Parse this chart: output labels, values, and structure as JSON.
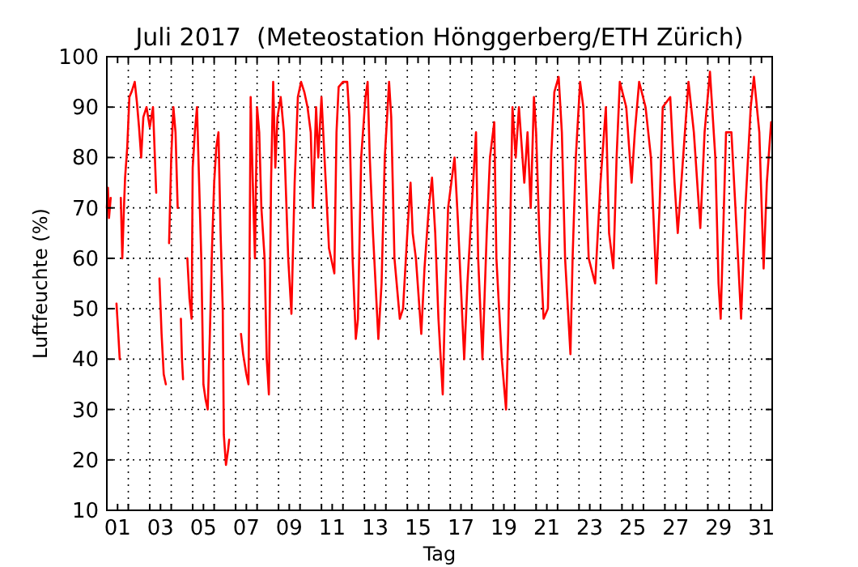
{
  "chart_data": {
    "type": "line",
    "title": "Juli 2017  (Meteostation Hönggerberg/ETH Zürich)",
    "xlabel": "Tag",
    "ylabel": "Luftfeuchte (%)",
    "xlim": [
      1,
      32
    ],
    "ylim": [
      10,
      100
    ],
    "yticks": [
      10,
      20,
      30,
      40,
      50,
      60,
      70,
      80,
      90,
      100
    ],
    "xticks": [
      {
        "value": 1.5,
        "label": "01"
      },
      {
        "value": 3.5,
        "label": "03"
      },
      {
        "value": 5.5,
        "label": "05"
      },
      {
        "value": 7.5,
        "label": "07"
      },
      {
        "value": 9.5,
        "label": "09"
      },
      {
        "value": 11.5,
        "label": "11"
      },
      {
        "value": 13.5,
        "label": "13"
      },
      {
        "value": 15.5,
        "label": "15"
      },
      {
        "value": 17.5,
        "label": "17"
      },
      {
        "value": 19.5,
        "label": "19"
      },
      {
        "value": 21.5,
        "label": "21"
      },
      {
        "value": 23.5,
        "label": "23"
      },
      {
        "value": 25.5,
        "label": "25"
      },
      {
        "value": 27.5,
        "label": "27"
      },
      {
        "value": 29.5,
        "label": "29"
      },
      {
        "value": 31.5,
        "label": "31"
      },
      {
        "value": 2,
        "label": null
      },
      {
        "value": 3,
        "label": null
      },
      {
        "value": 4,
        "label": null
      },
      {
        "value": 5,
        "label": null
      },
      {
        "value": 6,
        "label": null
      },
      {
        "value": 7,
        "label": null
      },
      {
        "value": 8,
        "label": null
      },
      {
        "value": 9,
        "label": null
      },
      {
        "value": 10,
        "label": null
      },
      {
        "value": 11,
        "label": null
      },
      {
        "value": 12,
        "label": null
      },
      {
        "value": 13,
        "label": null
      },
      {
        "value": 14,
        "label": null
      },
      {
        "value": 15,
        "label": null
      },
      {
        "value": 16,
        "label": null
      },
      {
        "value": 17,
        "label": null
      },
      {
        "value": 18,
        "label": null
      },
      {
        "value": 19,
        "label": null
      },
      {
        "value": 20,
        "label": null
      },
      {
        "value": 21,
        "label": null
      },
      {
        "value": 22,
        "label": null
      },
      {
        "value": 23,
        "label": null
      },
      {
        "value": 24,
        "label": null
      },
      {
        "value": 25,
        "label": null
      },
      {
        "value": 26,
        "label": null
      },
      {
        "value": 27,
        "label": null
      },
      {
        "value": 28,
        "label": null
      },
      {
        "value": 29,
        "label": null
      },
      {
        "value": 30,
        "label": null
      },
      {
        "value": 31,
        "label": null
      }
    ],
    "grid": true,
    "marker": "none",
    "line_style": "solid",
    "series": [
      {
        "color": "#ff0000",
        "x": [
          1.0,
          1.05,
          1.1,
          1.18,
          null,
          1.45,
          1.52,
          1.6,
          null,
          1.65,
          1.72,
          1.78,
          1.85,
          1.95,
          2.05,
          2.15,
          2.3,
          2.4,
          2.5,
          2.6,
          2.7,
          2.85,
          3.0,
          3.15,
          3.3,
          null,
          3.45,
          3.55,
          3.65,
          3.75,
          null,
          3.9,
          4.0,
          4.1,
          4.2,
          4.3,
          null,
          4.45,
          4.5,
          4.55,
          null,
          4.75,
          4.85,
          4.95,
          5.0,
          5.1,
          5.2,
          5.3,
          5.4,
          5.5,
          5.6,
          5.7,
          5.8,
          5.9,
          6.0,
          6.1,
          6.2,
          6.3,
          6.4,
          6.45,
          6.55,
          6.65,
          6.7,
          null,
          7.25,
          7.35,
          7.5,
          7.6,
          7.65,
          7.7,
          7.8,
          7.9,
          8.0,
          8.1,
          8.2,
          8.35,
          8.45,
          8.55,
          8.65,
          8.75,
          8.85,
          8.95,
          9.1,
          9.25,
          9.45,
          9.6,
          9.75,
          9.9,
          10.05,
          10.2,
          10.35,
          10.5,
          10.6,
          10.75,
          10.85,
          11.0,
          11.2,
          11.35,
          11.6,
          11.7,
          11.8,
          12.0,
          12.2,
          12.3,
          12.45,
          12.6,
          12.7,
          12.85,
          13.05,
          13.15,
          13.25,
          13.4,
          13.65,
          13.8,
          13.95,
          14.15,
          14.25,
          14.4,
          14.65,
          14.8,
          15.0,
          15.15,
          15.25,
          15.4,
          15.65,
          15.8,
          16.0,
          16.15,
          16.3,
          16.45,
          16.65,
          16.75,
          16.9,
          17.2,
          17.35,
          17.65,
          17.8,
          18.0,
          18.2,
          18.3,
          18.5,
          18.7,
          18.85,
          19.05,
          19.15,
          19.4,
          19.6,
          19.7,
          19.9,
          20.05,
          20.2,
          20.45,
          20.6,
          20.75,
          20.9,
          21.0,
          21.15,
          21.35,
          21.55,
          21.7,
          21.85,
          22.05,
          22.2,
          22.35,
          22.6,
          22.7,
          22.85,
          23.05,
          23.2,
          23.45,
          23.75,
          24.0,
          24.25,
          24.4,
          24.6,
          24.75,
          24.9,
          25.2,
          25.45,
          25.6,
          25.8,
          26.1,
          26.35,
          26.6,
          26.75,
          26.9,
          27.25,
          27.45,
          27.6,
          27.85,
          28.1,
          28.35,
          28.65,
          28.85,
          29.1,
          29.35,
          29.5,
          29.6,
          29.85,
          30.1,
          30.35,
          30.55,
          30.75,
          31.0,
          31.15,
          31.4,
          31.6,
          31.75,
          31.95
        ],
        "values": [
          70,
          74,
          68,
          72,
          null,
          51,
          46,
          40,
          null,
          72,
          60,
          68,
          76,
          82,
          92,
          93,
          95,
          91,
          86,
          80,
          88,
          90,
          86,
          90,
          73,
          null,
          56,
          45,
          37,
          35,
          null,
          63,
          80,
          90,
          85,
          70,
          null,
          48,
          40,
          36,
          null,
          60,
          52,
          48,
          78,
          85,
          90,
          75,
          60,
          35,
          32,
          30,
          45,
          62,
          75,
          82,
          85,
          65,
          50,
          25,
          19,
          22,
          24,
          null,
          45,
          41,
          37,
          35,
          60,
          92,
          75,
          60,
          90,
          85,
          70,
          60,
          40,
          33,
          75,
          95,
          78,
          88,
          92,
          85,
          60,
          49,
          75,
          92,
          95,
          93,
          90,
          85,
          70,
          90,
          80,
          92,
          75,
          62,
          57,
          85,
          94,
          95,
          95,
          88,
          60,
          44,
          48,
          80,
          92,
          95,
          80,
          65,
          44,
          55,
          80,
          95,
          88,
          60,
          48,
          50,
          65,
          75,
          65,
          60,
          45,
          58,
          70,
          76,
          65,
          48,
          33,
          50,
          70,
          80,
          68,
          40,
          55,
          70,
          85,
          60,
          40,
          65,
          80,
          87,
          60,
          40,
          30,
          45,
          90,
          80,
          90,
          75,
          85,
          70,
          92,
          85,
          65,
          48,
          50,
          80,
          93,
          96,
          85,
          60,
          41,
          60,
          80,
          95,
          90,
          60,
          55,
          75,
          90,
          65,
          58,
          80,
          95,
          90,
          75,
          85,
          95,
          90,
          80,
          55,
          70,
          90,
          92,
          75,
          65,
          80,
          95,
          85,
          66,
          85,
          97,
          80,
          55,
          48,
          85,
          85,
          65,
          48,
          70,
          90,
          96,
          85,
          58,
          75,
          87
        ]
      }
    ]
  }
}
